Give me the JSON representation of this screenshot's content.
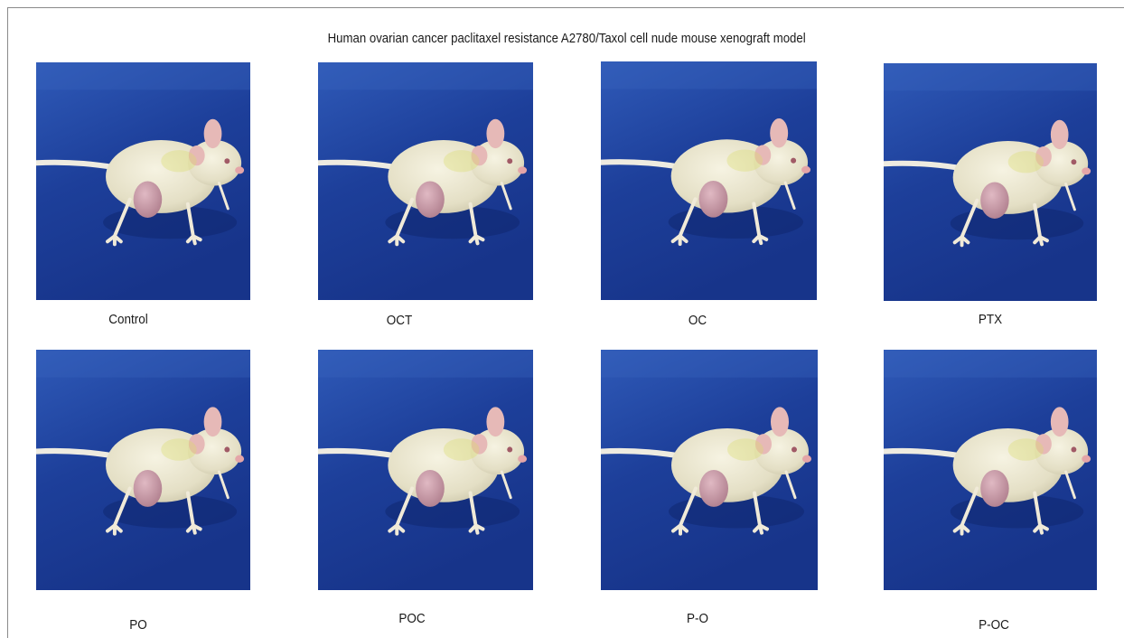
{
  "figure": {
    "title": "Human ovarian cancer paclitaxel resistance A2780/Taxol cell nude mouse xenograft model",
    "panels": [
      {
        "label": "Control",
        "photo": "nude-mouse-with-flank-tumor"
      },
      {
        "label": "OCT",
        "photo": "nude-mouse-with-flank-tumor"
      },
      {
        "label": "OC",
        "photo": "nude-mouse-with-flank-tumor"
      },
      {
        "label": "PTX",
        "photo": "nude-mouse-with-flank-tumor"
      },
      {
        "label": "PO",
        "photo": "nude-mouse-with-flank-tumor"
      },
      {
        "label": "POC",
        "photo": "nude-mouse-with-flank-tumor"
      },
      {
        "label": "P-O",
        "photo": "nude-mouse-with-flank-tumor"
      },
      {
        "label": "P-OC",
        "photo": "nude-mouse-with-flank-tumor"
      }
    ],
    "colors": {
      "background_blue": "#1d3f9a",
      "mouse_skin": "#ece8d2",
      "tumor": "#c99aa6",
      "ear": "#e6b9b7"
    }
  }
}
